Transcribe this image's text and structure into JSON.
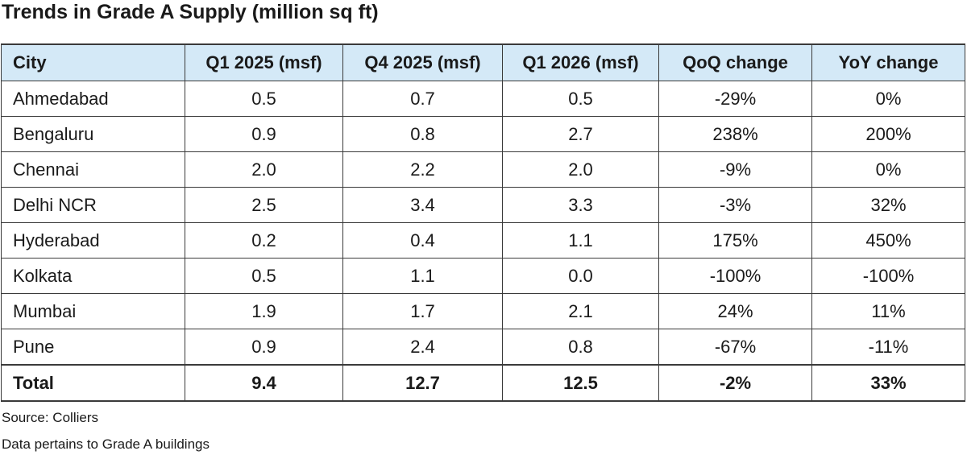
{
  "title": "Trends in Grade A Supply (million sq ft)",
  "chart_data": {
    "type": "table",
    "title": "Trends in Grade A Supply (million sq ft)",
    "columns": [
      "City",
      "Q1 2025 (msf)",
      "Q4 2025 (msf)",
      "Q1 2026 (msf)",
      "QoQ change",
      "YoY change"
    ],
    "rows": [
      [
        "Ahmedabad",
        "0.5",
        "0.7",
        "0.5",
        "-29%",
        "0%"
      ],
      [
        "Bengaluru",
        "0.9",
        "0.8",
        "2.7",
        "238%",
        "200%"
      ],
      [
        "Chennai",
        "2.0",
        "2.2",
        "2.0",
        "-9%",
        "0%"
      ],
      [
        "Delhi NCR",
        "2.5",
        "3.4",
        "3.3",
        "-3%",
        "32%"
      ],
      [
        "Hyderabad",
        "0.2",
        "0.4",
        "1.1",
        "175%",
        "450%"
      ],
      [
        "Kolkata",
        "0.5",
        "1.1",
        "0.0",
        "-100%",
        "-100%"
      ],
      [
        "Mumbai",
        "1.9",
        "1.7",
        "2.1",
        "24%",
        "11%"
      ],
      [
        "Pune",
        "0.9",
        "2.4",
        "0.8",
        "-67%",
        "-11%"
      ]
    ],
    "total": [
      "Total",
      "9.4",
      "12.7",
      "12.5",
      "-2%",
      "33%"
    ]
  },
  "colors": {
    "header_background": "#d4e9f7",
    "border": "#3a3a3a"
  },
  "source": "Source: Colliers",
  "note": "Data pertains to Grade A buildings"
}
